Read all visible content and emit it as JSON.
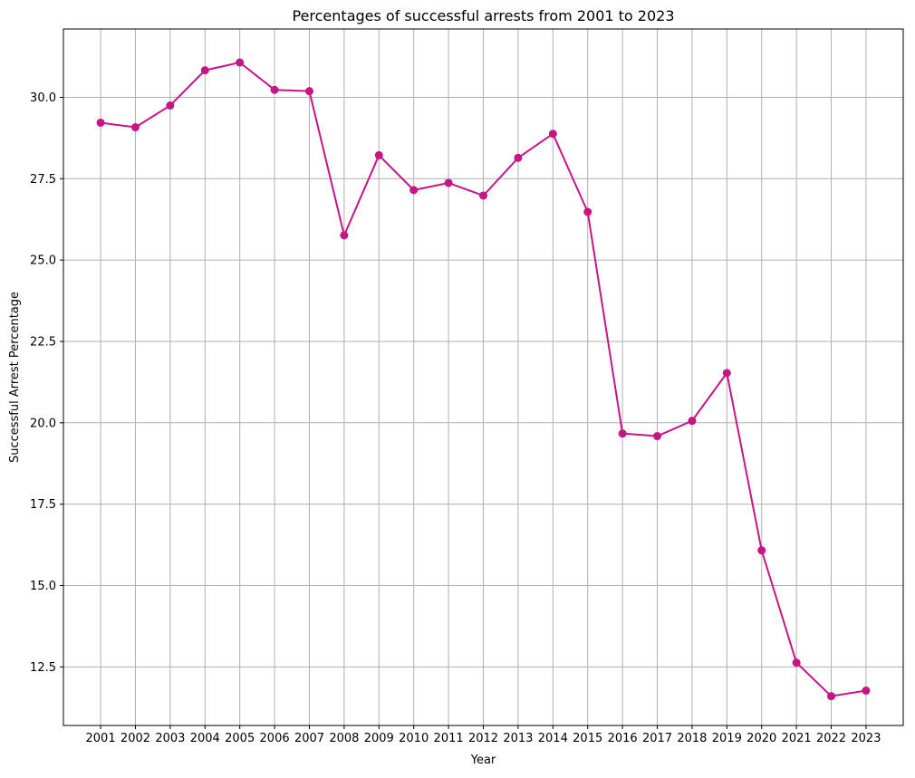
{
  "chart_data": {
    "type": "line",
    "title": "Percentages of successful arrests from 2001 to 2023",
    "xlabel": "Year",
    "ylabel": "Successful Arrest Percentage",
    "x": [
      2001,
      2002,
      2003,
      2004,
      2005,
      2006,
      2007,
      2008,
      2009,
      2010,
      2011,
      2012,
      2013,
      2014,
      2015,
      2016,
      2017,
      2018,
      2019,
      2020,
      2021,
      2022,
      2023
    ],
    "series": [
      {
        "values": [
          29.22,
          29.08,
          29.75,
          30.83,
          31.07,
          30.23,
          30.19,
          25.76,
          28.22,
          27.15,
          27.37,
          26.98,
          28.14,
          28.88,
          26.48,
          19.67,
          19.59,
          20.06,
          21.53,
          16.08,
          12.63,
          11.6,
          11.77
        ],
        "color": "#c71585",
        "marker": "circle"
      }
    ],
    "ylim": [
      10.7,
      32.1
    ],
    "yticks": [
      12.5,
      15.0,
      17.5,
      20.0,
      22.5,
      25.0,
      27.5,
      30.0
    ],
    "ytick_labels": [
      "12.5",
      "15.0",
      "17.5",
      "20.0",
      "22.5",
      "25.0",
      "27.5",
      "30.0"
    ],
    "grid": true,
    "grid_color": "#b0b0b0"
  }
}
